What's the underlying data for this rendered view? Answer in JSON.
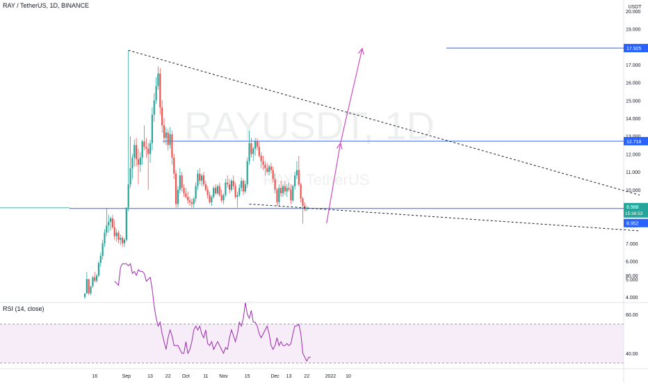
{
  "header": {
    "symbol": "RAY / TetherUS, 1D, BINANCE"
  },
  "axis": {
    "currency": "USDT"
  },
  "watermark": {
    "main": "RAYUSDT, 1D",
    "sub": "RAY / TetherUS"
  },
  "colors": {
    "up": "#26a69a",
    "down": "#ef5350",
    "hline": "#2962ff",
    "arrow": "#cc4dc0",
    "rsi": "#9c27b0",
    "rsi_band": "#f3e5f5"
  },
  "price_labels": {
    "target": "17.925",
    "resistance": "12.718",
    "current": "8.988",
    "countdown": "15:36:53",
    "support": "8.952"
  },
  "chart_data": [
    {
      "type": "candlestick",
      "title": "RAY / TetherUS, 1D, BINANCE",
      "y_ticks": [
        "4.000",
        "5.000",
        "6.000",
        "7.000",
        "8.000",
        "9.000",
        "10.000",
        "11.000",
        "12.000",
        "13.000",
        "14.000",
        "15.000",
        "16.000",
        "17.000",
        "18.000",
        "19.000",
        "20.000"
      ],
      "ylim": [
        3.6,
        20.4
      ],
      "x_ticks": [
        "16",
        "Sep",
        "13",
        "22",
        "Oct",
        "11",
        "Nov",
        "15",
        "Dec",
        "13",
        "22",
        "2022",
        "10"
      ],
      "x_tick_dates": [
        "2021-08-16",
        "2021-09-01",
        "2021-09-13",
        "2021-09-22",
        "2021-10-01",
        "2021-10-11",
        "2021-10-20",
        "2021-11-01",
        "2021-11-15",
        "2021-11-22",
        "2021-12-01",
        "2021-12-13",
        "2021-12-22",
        "2022-01-01",
        "2022-01-10"
      ],
      "first_candle_date": "2021-08-11",
      "candles": [
        [
          4.0,
          4.2,
          3.9,
          4.2
        ],
        [
          4.2,
          5.4,
          4.2,
          5.0
        ],
        [
          5.0,
          5.0,
          4.1,
          4.2
        ],
        [
          4.2,
          4.6,
          4.1,
          4.6
        ],
        [
          4.6,
          5.2,
          4.5,
          5.1
        ],
        [
          5.1,
          5.4,
          4.8,
          4.9
        ],
        [
          4.9,
          5.3,
          4.8,
          5.2
        ],
        [
          5.2,
          6.0,
          5.1,
          5.9
        ],
        [
          5.9,
          6.5,
          5.7,
          6.3
        ],
        [
          6.3,
          7.2,
          6.1,
          7.0
        ],
        [
          7.0,
          7.8,
          6.8,
          7.6
        ],
        [
          7.6,
          9.0,
          7.4,
          8.0
        ],
        [
          8.0,
          8.6,
          7.6,
          8.2
        ],
        [
          8.2,
          8.5,
          7.7,
          8.4
        ],
        [
          8.4,
          8.6,
          7.8,
          7.9
        ],
        [
          7.9,
          8.3,
          7.2,
          7.4
        ],
        [
          7.4,
          7.8,
          7.1,
          7.6
        ],
        [
          7.6,
          7.7,
          7.0,
          7.2
        ],
        [
          7.2,
          7.5,
          6.9,
          7.3
        ],
        [
          7.3,
          7.4,
          6.8,
          7.0
        ],
        [
          7.0,
          7.3,
          6.8,
          7.2
        ],
        [
          7.2,
          9.0,
          7.1,
          9.0
        ],
        [
          9.0,
          17.8,
          8.8,
          10.3
        ],
        [
          10.3,
          13.0,
          10.1,
          11.2
        ],
        [
          11.2,
          12.0,
          10.6,
          11.8
        ],
        [
          11.8,
          12.8,
          11.3,
          12.5
        ],
        [
          12.5,
          12.9,
          11.3,
          11.7
        ],
        [
          11.7,
          12.3,
          10.3,
          11.4
        ],
        [
          11.4,
          12.1,
          11.0,
          11.8
        ],
        [
          11.8,
          12.8,
          11.4,
          12.7
        ],
        [
          12.7,
          13.6,
          12.2,
          12.4
        ],
        [
          12.4,
          12.9,
          11.8,
          12.3
        ],
        [
          12.3,
          12.6,
          10.0,
          12.0
        ],
        [
          12.0,
          12.8,
          11.5,
          12.6
        ],
        [
          12.6,
          14.6,
          12.2,
          14.2
        ],
        [
          14.2,
          15.4,
          13.8,
          15.0
        ],
        [
          15.0,
          16.3,
          14.8,
          15.8
        ],
        [
          15.8,
          16.9,
          15.6,
          16.5
        ],
        [
          16.5,
          16.8,
          14.2,
          14.6
        ],
        [
          14.6,
          15.0,
          13.2,
          13.6
        ],
        [
          13.6,
          14.0,
          12.6,
          12.9
        ],
        [
          12.9,
          13.5,
          12.5,
          13.2
        ],
        [
          13.2,
          13.4,
          12.2,
          12.5
        ],
        [
          12.5,
          13.5,
          12.3,
          13.1
        ],
        [
          13.1,
          13.3,
          11.4,
          11.8
        ],
        [
          11.8,
          12.0,
          10.6,
          10.9
        ],
        [
          10.9,
          11.1,
          9.0,
          9.2
        ],
        [
          9.2,
          10.2,
          9.0,
          10.0
        ],
        [
          10.0,
          11.2,
          9.8,
          10.8
        ],
        [
          10.8,
          11.0,
          9.9,
          10.1
        ],
        [
          10.1,
          10.3,
          9.6,
          9.8
        ],
        [
          9.8,
          10.1,
          9.5,
          9.6
        ],
        [
          9.6,
          9.9,
          9.2,
          9.4
        ],
        [
          9.4,
          9.6,
          9.1,
          9.3
        ],
        [
          9.3,
          9.5,
          9.0,
          9.2
        ],
        [
          9.2,
          9.6,
          9.0,
          9.5
        ],
        [
          9.5,
          10.4,
          9.3,
          10.2
        ],
        [
          10.2,
          11.1,
          10.0,
          10.9
        ],
        [
          10.9,
          11.2,
          10.3,
          10.5
        ],
        [
          10.5,
          10.9,
          10.2,
          10.8
        ],
        [
          10.8,
          11.0,
          10.2,
          10.3
        ],
        [
          10.3,
          10.5,
          9.9,
          10.0
        ],
        [
          10.0,
          10.2,
          9.5,
          9.7
        ],
        [
          9.7,
          9.9,
          9.2,
          9.3
        ],
        [
          9.3,
          9.7,
          9.1,
          9.6
        ],
        [
          9.6,
          10.2,
          9.5,
          10.1
        ],
        [
          10.1,
          10.3,
          9.7,
          9.8
        ],
        [
          9.8,
          10.3,
          9.7,
          10.2
        ],
        [
          10.2,
          10.4,
          9.6,
          9.7
        ],
        [
          9.7,
          10.0,
          9.3,
          9.4
        ],
        [
          9.4,
          9.8,
          9.2,
          9.7
        ],
        [
          9.7,
          10.6,
          9.6,
          10.4
        ],
        [
          10.4,
          10.8,
          10.1,
          10.3
        ],
        [
          10.3,
          10.6,
          9.8,
          10.0
        ],
        [
          10.0,
          10.6,
          9.9,
          10.5
        ],
        [
          10.5,
          10.8,
          10.0,
          10.2
        ],
        [
          10.2,
          10.4,
          9.5,
          9.6
        ],
        [
          9.6,
          9.9,
          9.0,
          9.7
        ],
        [
          9.7,
          10.3,
          9.6,
          10.1
        ],
        [
          10.1,
          10.7,
          9.9,
          10.5
        ],
        [
          10.5,
          10.6,
          9.7,
          9.9
        ],
        [
          9.9,
          10.5,
          9.8,
          10.3
        ],
        [
          10.3,
          11.8,
          10.1,
          11.6
        ],
        [
          11.6,
          13.3,
          11.4,
          12.6
        ],
        [
          12.6,
          12.9,
          11.8,
          12.0
        ],
        [
          12.0,
          12.4,
          11.6,
          12.3
        ],
        [
          12.3,
          12.9,
          11.9,
          12.7
        ],
        [
          12.7,
          12.9,
          12.2,
          12.4
        ],
        [
          12.4,
          12.7,
          11.8,
          11.9
        ],
        [
          11.9,
          12.1,
          11.2,
          11.6
        ],
        [
          11.6,
          11.9,
          11.1,
          11.4
        ],
        [
          11.4,
          11.6,
          10.8,
          11.2
        ],
        [
          11.2,
          11.5,
          10.9,
          11.0
        ],
        [
          11.0,
          11.4,
          10.8,
          11.3
        ],
        [
          11.3,
          11.5,
          10.9,
          11.1
        ],
        [
          11.1,
          11.3,
          10.4,
          10.6
        ],
        [
          10.6,
          10.9,
          9.8,
          10.0
        ],
        [
          10.0,
          10.1,
          9.1,
          9.3
        ],
        [
          9.3,
          10.3,
          9.1,
          10.1
        ],
        [
          10.1,
          10.5,
          9.6,
          9.8
        ],
        [
          9.8,
          10.3,
          9.6,
          10.2
        ],
        [
          10.2,
          10.5,
          9.7,
          9.9
        ],
        [
          9.9,
          10.3,
          9.6,
          10.1
        ],
        [
          10.1,
          10.4,
          9.9,
          10.0
        ],
        [
          10.0,
          10.3,
          9.2,
          9.4
        ],
        [
          9.4,
          10.3,
          9.3,
          10.2
        ],
        [
          10.2,
          11.0,
          10.0,
          10.8
        ],
        [
          10.8,
          11.6,
          10.6,
          11.1
        ],
        [
          11.1,
          11.9,
          10.2,
          10.3
        ],
        [
          10.3,
          10.4,
          9.3,
          9.5
        ],
        [
          9.5,
          9.6,
          8.1,
          9.1
        ],
        [
          9.1,
          9.3,
          8.8,
          8.9
        ],
        [
          8.9,
          9.1,
          8.8,
          8.99
        ]
      ],
      "annotations": {
        "hline_target": 17.925,
        "hline_resistance": 12.718,
        "hline_support_level": 8.952,
        "hline_current_price": 8.988,
        "upper_trendline": [
          [
            22,
            17.8
          ],
          [
            280,
            9.7
          ]
        ],
        "lower_trendline": [
          [
            83,
            9.2
          ],
          [
            280,
            7.7
          ]
        ],
        "projection_arrow": [
          [
            122,
            8.12
          ],
          [
            129,
            12.6
          ],
          [
            140,
            17.9
          ]
        ]
      }
    },
    {
      "type": "line",
      "title": "RSI (14, close)",
      "y_ticks": [
        "40.00",
        "60.00",
        "80.00"
      ],
      "ylim": [
        27,
        90
      ],
      "band": [
        30,
        70
      ],
      "first_candle_index": 15,
      "values": [
        77,
        76,
        75,
        84,
        86,
        86,
        86,
        85,
        86,
        81,
        82,
        80,
        83,
        82,
        82,
        81,
        77,
        78,
        79,
        73,
        64,
        58,
        54,
        56,
        50,
        46,
        42,
        48,
        52,
        49,
        44,
        44,
        44,
        42,
        40,
        40,
        46,
        40,
        42,
        46,
        52,
        54,
        52,
        54,
        50,
        48,
        52,
        45,
        44,
        46,
        42,
        44,
        46,
        44,
        42,
        40,
        43,
        42,
        48,
        52,
        49,
        46,
        50,
        56,
        54,
        58,
        66,
        60,
        58,
        62,
        56,
        56,
        54,
        50,
        48,
        50,
        52,
        54,
        50,
        44,
        42,
        44,
        48,
        44,
        46,
        44,
        44,
        45,
        44,
        45,
        50,
        54,
        54,
        55,
        50,
        40,
        38,
        36,
        38,
        38
      ]
    }
  ]
}
